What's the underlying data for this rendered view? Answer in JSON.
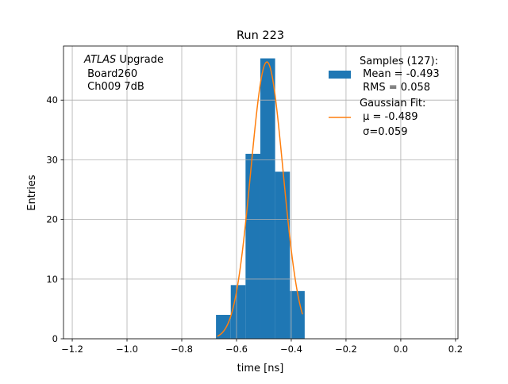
{
  "chart_data": {
    "type": "bar",
    "title": "Run 223",
    "xlabel": "time [ns]",
    "ylabel": "Entries",
    "xlim": [
      -1.232,
      0.209
    ],
    "ylim": [
      0,
      49.07
    ],
    "grid": true,
    "xticks": [
      -1.2,
      -1.0,
      -0.8,
      -0.6,
      -0.4,
      -0.2,
      0.0,
      0.2
    ],
    "xtick_labels": [
      "−1.2",
      "−1.0",
      "−0.8",
      "−0.6",
      "−0.4",
      "−0.2",
      "0.0",
      "0.2"
    ],
    "yticks": [
      0,
      10,
      20,
      30,
      40
    ],
    "ytick_labels": [
      "0",
      "10",
      "20",
      "30",
      "40"
    ],
    "histogram": {
      "bin_edges": [
        -0.675,
        -0.621,
        -0.567,
        -0.513,
        -0.459,
        -0.405,
        -0.351
      ],
      "counts": [
        4,
        9,
        31,
        47,
        28,
        8
      ],
      "color": "#1f77b4"
    },
    "fit": {
      "type": "gaussian",
      "mu": -0.489,
      "sigma": 0.059,
      "amplitude": 46.4,
      "x_range": [
        -0.67,
        -0.359
      ],
      "color": "#ff7f0e"
    },
    "legend": {
      "placement": "upper right",
      "entries": [
        {
          "lines": [
            "Samples (127):",
            " Mean = -0.493",
            " RMS = 0.058"
          ]
        },
        {
          "lines": [
            "Gaussian Fit:",
            " μ = -0.489",
            " σ=0.059"
          ]
        }
      ]
    },
    "annotation": {
      "italic": "ATLAS",
      "line1_rest": " Upgrade",
      "line2": " Board260",
      "line3": " Ch009 7dB"
    }
  }
}
